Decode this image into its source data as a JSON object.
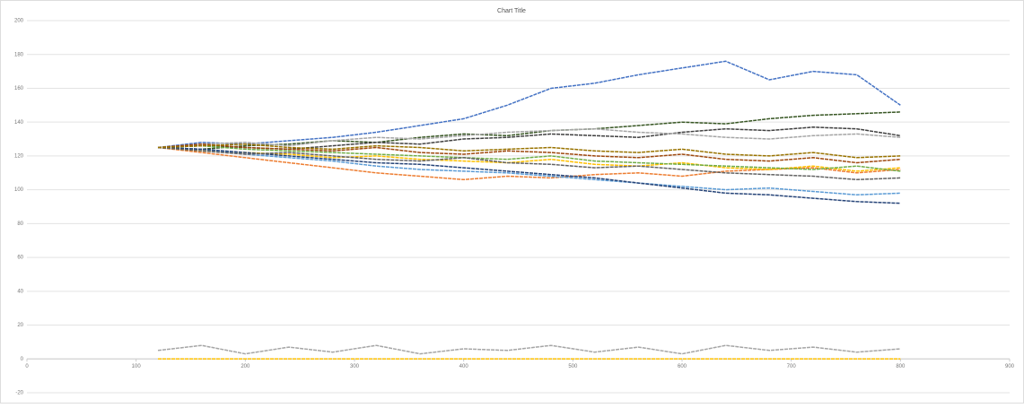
{
  "chart_data": {
    "type": "line",
    "title": "Chart Title",
    "x": [
      120,
      160,
      200,
      240,
      280,
      320,
      360,
      400,
      440,
      480,
      520,
      560,
      600,
      640,
      680,
      720,
      760,
      800
    ],
    "xlim": [
      0,
      900
    ],
    "xticks": [
      0,
      100,
      200,
      300,
      400,
      500,
      600,
      700,
      800,
      900
    ],
    "ylim": [
      -20,
      200
    ],
    "yticks": [
      -20,
      0,
      20,
      40,
      60,
      80,
      100,
      120,
      140,
      160,
      180,
      200
    ],
    "grid": true,
    "series": [
      {
        "color": "#4472c4",
        "values": [
          125,
          128,
          127,
          129,
          131,
          134,
          138,
          142,
          150,
          160,
          163,
          168,
          172,
          176,
          165,
          170,
          168,
          150
        ]
      },
      {
        "color": "#375623",
        "values": [
          125,
          124,
          126,
          127,
          129,
          128,
          131,
          133,
          132,
          135,
          136,
          138,
          140,
          139,
          142,
          144,
          145,
          146
        ]
      },
      {
        "color": "#404040",
        "values": [
          125,
          126,
          125,
          124,
          126,
          128,
          127,
          130,
          131,
          133,
          132,
          131,
          134,
          136,
          135,
          137,
          136,
          132
        ]
      },
      {
        "color": "#ed7d31",
        "values": [
          125,
          122,
          119,
          116,
          113,
          110,
          108,
          106,
          108,
          107,
          109,
          110,
          108,
          111,
          112,
          113,
          110,
          112
        ]
      },
      {
        "color": "#a5a5a5",
        "values": [
          125,
          127,
          128,
          126,
          129,
          131,
          130,
          132,
          134,
          135,
          136,
          134,
          133,
          131,
          130,
          132,
          133,
          131
        ]
      },
      {
        "color": "#ffc000",
        "values": [
          125,
          123,
          122,
          121,
          119,
          120,
          118,
          117,
          116,
          118,
          115,
          114,
          116,
          113,
          112,
          114,
          111,
          113
        ]
      },
      {
        "color": "#5b9bd5",
        "values": [
          125,
          124,
          121,
          119,
          117,
          114,
          112,
          111,
          110,
          108,
          106,
          104,
          102,
          100,
          101,
          99,
          97,
          98
        ]
      },
      {
        "color": "#70ad47",
        "values": [
          125,
          126,
          124,
          123,
          122,
          121,
          120,
          119,
          118,
          120,
          117,
          116,
          115,
          114,
          113,
          112,
          114,
          111
        ]
      },
      {
        "color": "#264478",
        "values": [
          125,
          124,
          122,
          120,
          118,
          116,
          115,
          113,
          111,
          109,
          107,
          104,
          101,
          98,
          97,
          95,
          93,
          92
        ]
      },
      {
        "color": "#9e480e",
        "values": [
          125,
          127,
          125,
          124,
          123,
          125,
          122,
          121,
          123,
          122,
          120,
          119,
          121,
          118,
          117,
          119,
          116,
          118
        ]
      },
      {
        "color": "#636363",
        "values": [
          125,
          123,
          121,
          122,
          120,
          118,
          117,
          119,
          116,
          115,
          113,
          114,
          112,
          110,
          109,
          108,
          106,
          107
        ]
      },
      {
        "color": "#997300",
        "values": [
          125,
          126,
          127,
          125,
          124,
          126,
          125,
          123,
          124,
          125,
          123,
          122,
          124,
          121,
          120,
          122,
          119,
          120
        ]
      },
      {
        "color": "#a5a5a5",
        "values": [
          5,
          8,
          3,
          7,
          4,
          8,
          3,
          6,
          5,
          8,
          4,
          7,
          3,
          8,
          5,
          7,
          4,
          6
        ]
      },
      {
        "color": "#ffc000",
        "values": [
          0,
          0,
          0,
          0,
          0,
          0,
          0,
          0,
          0,
          0,
          0,
          0,
          0,
          0,
          0,
          0,
          0,
          0
        ]
      }
    ]
  }
}
